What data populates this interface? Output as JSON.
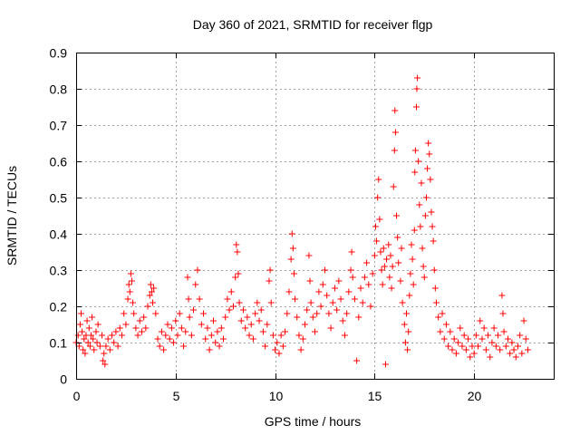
{
  "chart_data": {
    "type": "scatter",
    "title": "Day 360 of 2021, SRMTID for receiver flgp",
    "xlabel": "GPS time / hours",
    "ylabel": "SRMTID / TECUs",
    "xlim": [
      0,
      24
    ],
    "ylim": [
      0,
      0.9
    ],
    "xticks": [
      0,
      5,
      10,
      15,
      20
    ],
    "xtick_labels": [
      "0",
      "5",
      "10",
      "15",
      "20"
    ],
    "yticks": [
      0,
      0.1,
      0.2,
      0.3,
      0.4,
      0.5,
      0.6,
      0.7,
      0.8,
      0.9
    ],
    "ytick_labels": [
      "0",
      "0.1",
      "0.2",
      "0.3",
      "0.4",
      "0.5",
      "0.6",
      "0.7",
      "0.8",
      "0.9"
    ],
    "grid": true,
    "marker": "+",
    "color": "#ff0000",
    "series": [
      {
        "name": "SRMTID",
        "points": [
          [
            0.0,
            0.1
          ],
          [
            0.1,
            0.12
          ],
          [
            0.15,
            0.09
          ],
          [
            0.2,
            0.15
          ],
          [
            0.25,
            0.18
          ],
          [
            0.3,
            0.13
          ],
          [
            0.35,
            0.08
          ],
          [
            0.4,
            0.11
          ],
          [
            0.45,
            0.07
          ],
          [
            0.5,
            0.12
          ],
          [
            0.55,
            0.16
          ],
          [
            0.6,
            0.1
          ],
          [
            0.65,
            0.14
          ],
          [
            0.7,
            0.09
          ],
          [
            0.75,
            0.12
          ],
          [
            0.8,
            0.17
          ],
          [
            0.85,
            0.11
          ],
          [
            0.9,
            0.08
          ],
          [
            1.0,
            0.13
          ],
          [
            1.05,
            0.1
          ],
          [
            1.1,
            0.15
          ],
          [
            1.2,
            0.09
          ],
          [
            1.3,
            0.12
          ],
          [
            1.35,
            0.05
          ],
          [
            1.4,
            0.07
          ],
          [
            1.45,
            0.04
          ],
          [
            1.5,
            0.09
          ],
          [
            1.6,
            0.11
          ],
          [
            1.7,
            0.08
          ],
          [
            1.8,
            0.12
          ],
          [
            1.9,
            0.1
          ],
          [
            2.0,
            0.13
          ],
          [
            2.1,
            0.09
          ],
          [
            2.2,
            0.14
          ],
          [
            2.3,
            0.12
          ],
          [
            2.4,
            0.18
          ],
          [
            2.5,
            0.15
          ],
          [
            2.6,
            0.22
          ],
          [
            2.65,
            0.26
          ],
          [
            2.7,
            0.24
          ],
          [
            2.75,
            0.29
          ],
          [
            2.8,
            0.27
          ],
          [
            2.85,
            0.21
          ],
          [
            2.9,
            0.18
          ],
          [
            3.0,
            0.14
          ],
          [
            3.1,
            0.12
          ],
          [
            3.2,
            0.16
          ],
          [
            3.3,
            0.13
          ],
          [
            3.4,
            0.17
          ],
          [
            3.5,
            0.14
          ],
          [
            3.6,
            0.2
          ],
          [
            3.7,
            0.23
          ],
          [
            3.75,
            0.26
          ],
          [
            3.8,
            0.24
          ],
          [
            3.85,
            0.21
          ],
          [
            3.9,
            0.25
          ],
          [
            4.0,
            0.18
          ],
          [
            4.1,
            0.11
          ],
          [
            4.2,
            0.09
          ],
          [
            4.3,
            0.13
          ],
          [
            4.4,
            0.08
          ],
          [
            4.5,
            0.12
          ],
          [
            4.6,
            0.15
          ],
          [
            4.7,
            0.11
          ],
          [
            4.8,
            0.14
          ],
          [
            4.9,
            0.1
          ],
          [
            5.0,
            0.16
          ],
          [
            5.1,
            0.12
          ],
          [
            5.2,
            0.18
          ],
          [
            5.3,
            0.14
          ],
          [
            5.4,
            0.09
          ],
          [
            5.5,
            0.13
          ],
          [
            5.6,
            0.28
          ],
          [
            5.65,
            0.22
          ],
          [
            5.7,
            0.17
          ],
          [
            5.8,
            0.12
          ],
          [
            5.9,
            0.19
          ],
          [
            6.0,
            0.26
          ],
          [
            6.1,
            0.3
          ],
          [
            6.2,
            0.22
          ],
          [
            6.3,
            0.15
          ],
          [
            6.4,
            0.18
          ],
          [
            6.5,
            0.11
          ],
          [
            6.6,
            0.14
          ],
          [
            6.7,
            0.08
          ],
          [
            6.8,
            0.12
          ],
          [
            6.9,
            0.16
          ],
          [
            7.0,
            0.1
          ],
          [
            7.1,
            0.13
          ],
          [
            7.2,
            0.09
          ],
          [
            7.3,
            0.14
          ],
          [
            7.4,
            0.11
          ],
          [
            7.5,
            0.17
          ],
          [
            7.6,
            0.22
          ],
          [
            7.7,
            0.19
          ],
          [
            7.8,
            0.24
          ],
          [
            7.9,
            0.2
          ],
          [
            8.0,
            0.28
          ],
          [
            8.05,
            0.37
          ],
          [
            8.1,
            0.35
          ],
          [
            8.15,
            0.29
          ],
          [
            8.2,
            0.21
          ],
          [
            8.3,
            0.16
          ],
          [
            8.4,
            0.19
          ],
          [
            8.5,
            0.14
          ],
          [
            8.6,
            0.17
          ],
          [
            8.7,
            0.12
          ],
          [
            8.8,
            0.15
          ],
          [
            8.9,
            0.11
          ],
          [
            9.0,
            0.18
          ],
          [
            9.1,
            0.21
          ],
          [
            9.2,
            0.16
          ],
          [
            9.3,
            0.19
          ],
          [
            9.4,
            0.13
          ],
          [
            9.5,
            0.09
          ],
          [
            9.6,
            0.15
          ],
          [
            9.7,
            0.27
          ],
          [
            9.75,
            0.3
          ],
          [
            9.8,
            0.21
          ],
          [
            9.9,
            0.12
          ],
          [
            10.0,
            0.08
          ],
          [
            10.1,
            0.1
          ],
          [
            10.2,
            0.07
          ],
          [
            10.3,
            0.12
          ],
          [
            10.4,
            0.09
          ],
          [
            10.5,
            0.13
          ],
          [
            10.6,
            0.18
          ],
          [
            10.7,
            0.24
          ],
          [
            10.8,
            0.33
          ],
          [
            10.85,
            0.4
          ],
          [
            10.9,
            0.36
          ],
          [
            10.95,
            0.29
          ],
          [
            11.0,
            0.22
          ],
          [
            11.1,
            0.17
          ],
          [
            11.2,
            0.12
          ],
          [
            11.3,
            0.08
          ],
          [
            11.4,
            0.11
          ],
          [
            11.5,
            0.15
          ],
          [
            11.6,
            0.19
          ],
          [
            11.7,
            0.34
          ],
          [
            11.75,
            0.27
          ],
          [
            11.8,
            0.21
          ],
          [
            11.9,
            0.17
          ],
          [
            12.0,
            0.13
          ],
          [
            12.1,
            0.18
          ],
          [
            12.2,
            0.24
          ],
          [
            12.3,
            0.2
          ],
          [
            12.4,
            0.26
          ],
          [
            12.5,
            0.3
          ],
          [
            12.6,
            0.23
          ],
          [
            12.7,
            0.18
          ],
          [
            12.8,
            0.14
          ],
          [
            12.9,
            0.21
          ],
          [
            13.0,
            0.25
          ],
          [
            13.1,
            0.19
          ],
          [
            13.2,
            0.27
          ],
          [
            13.3,
            0.22
          ],
          [
            13.4,
            0.16
          ],
          [
            13.5,
            0.12
          ],
          [
            13.6,
            0.18
          ],
          [
            13.7,
            0.24
          ],
          [
            13.8,
            0.3
          ],
          [
            13.85,
            0.35
          ],
          [
            13.9,
            0.28
          ],
          [
            14.0,
            0.22
          ],
          [
            14.1,
            0.05
          ],
          [
            14.2,
            0.17
          ],
          [
            14.3,
            0.25
          ],
          [
            14.4,
            0.21
          ],
          [
            14.5,
            0.28
          ],
          [
            14.6,
            0.32
          ],
          [
            14.7,
            0.26
          ],
          [
            14.8,
            0.2
          ],
          [
            14.9,
            0.29
          ],
          [
            15.0,
            0.34
          ],
          [
            15.05,
            0.42
          ],
          [
            15.1,
            0.38
          ],
          [
            15.15,
            0.5
          ],
          [
            15.2,
            0.55
          ],
          [
            15.25,
            0.44
          ],
          [
            15.3,
            0.35
          ],
          [
            15.35,
            0.3
          ],
          [
            15.4,
            0.26
          ],
          [
            15.45,
            0.36
          ],
          [
            15.5,
            0.31
          ],
          [
            15.55,
            0.04
          ],
          [
            15.6,
            0.33
          ],
          [
            15.7,
            0.37
          ],
          [
            15.75,
            0.28
          ],
          [
            15.8,
            0.34
          ],
          [
            15.85,
            0.25
          ],
          [
            15.9,
            0.31
          ],
          [
            15.95,
            0.53
          ],
          [
            16.0,
            0.63
          ],
          [
            16.02,
            0.74
          ],
          [
            16.05,
            0.68
          ],
          [
            16.1,
            0.45
          ],
          [
            16.15,
            0.39
          ],
          [
            16.2,
            0.32
          ],
          [
            16.3,
            0.27
          ],
          [
            16.35,
            0.36
          ],
          [
            16.4,
            0.21
          ],
          [
            16.5,
            0.15
          ],
          [
            16.55,
            0.1
          ],
          [
            16.6,
            0.18
          ],
          [
            16.65,
            0.08
          ],
          [
            16.7,
            0.13
          ],
          [
            16.75,
            0.23
          ],
          [
            16.8,
            0.29
          ],
          [
            16.85,
            0.37
          ],
          [
            16.9,
            0.33
          ],
          [
            16.95,
            0.26
          ],
          [
            17.0,
            0.41
          ],
          [
            17.02,
            0.57
          ],
          [
            17.05,
            0.63
          ],
          [
            17.1,
            0.75
          ],
          [
            17.12,
            0.8
          ],
          [
            17.15,
            0.83
          ],
          [
            17.2,
            0.6
          ],
          [
            17.25,
            0.48
          ],
          [
            17.3,
            0.42
          ],
          [
            17.35,
            0.54
          ],
          [
            17.4,
            0.36
          ],
          [
            17.45,
            0.31
          ],
          [
            17.5,
            0.28
          ],
          [
            17.55,
            0.45
          ],
          [
            17.6,
            0.5
          ],
          [
            17.65,
            0.58
          ],
          [
            17.7,
            0.65
          ],
          [
            17.75,
            0.62
          ],
          [
            17.8,
            0.55
          ],
          [
            17.85,
            0.46
          ],
          [
            17.9,
            0.42
          ],
          [
            17.95,
            0.38
          ],
          [
            18.0,
            0.3
          ],
          [
            18.05,
            0.25
          ],
          [
            18.1,
            0.21
          ],
          [
            18.2,
            0.17
          ],
          [
            18.3,
            0.13
          ],
          [
            18.4,
            0.18
          ],
          [
            18.5,
            0.11
          ],
          [
            18.6,
            0.15
          ],
          [
            18.7,
            0.09
          ],
          [
            18.8,
            0.13
          ],
          [
            18.9,
            0.08
          ],
          [
            19.0,
            0.11
          ],
          [
            19.1,
            0.07
          ],
          [
            19.2,
            0.1
          ],
          [
            19.3,
            0.14
          ],
          [
            19.4,
            0.09
          ],
          [
            19.5,
            0.12
          ],
          [
            19.6,
            0.08
          ],
          [
            19.7,
            0.11
          ],
          [
            19.8,
            0.06
          ],
          [
            19.9,
            0.09
          ],
          [
            20.0,
            0.07
          ],
          [
            20.1,
            0.12
          ],
          [
            20.2,
            0.09
          ],
          [
            20.3,
            0.16
          ],
          [
            20.4,
            0.11
          ],
          [
            20.5,
            0.14
          ],
          [
            20.6,
            0.08
          ],
          [
            20.7,
            0.12
          ],
          [
            20.8,
            0.06
          ],
          [
            20.9,
            0.1
          ],
          [
            21.0,
            0.14
          ],
          [
            21.1,
            0.09
          ],
          [
            21.2,
            0.12
          ],
          [
            21.3,
            0.08
          ],
          [
            21.4,
            0.23
          ],
          [
            21.45,
            0.18
          ],
          [
            21.5,
            0.13
          ],
          [
            21.6,
            0.09
          ],
          [
            21.7,
            0.11
          ],
          [
            21.8,
            0.07
          ],
          [
            21.9,
            0.1
          ],
          [
            22.0,
            0.08
          ],
          [
            22.1,
            0.06
          ],
          [
            22.2,
            0.09
          ],
          [
            22.3,
            0.12
          ],
          [
            22.4,
            0.07
          ],
          [
            22.5,
            0.16
          ],
          [
            22.6,
            0.11
          ],
          [
            22.7,
            0.08
          ]
        ]
      }
    ]
  }
}
